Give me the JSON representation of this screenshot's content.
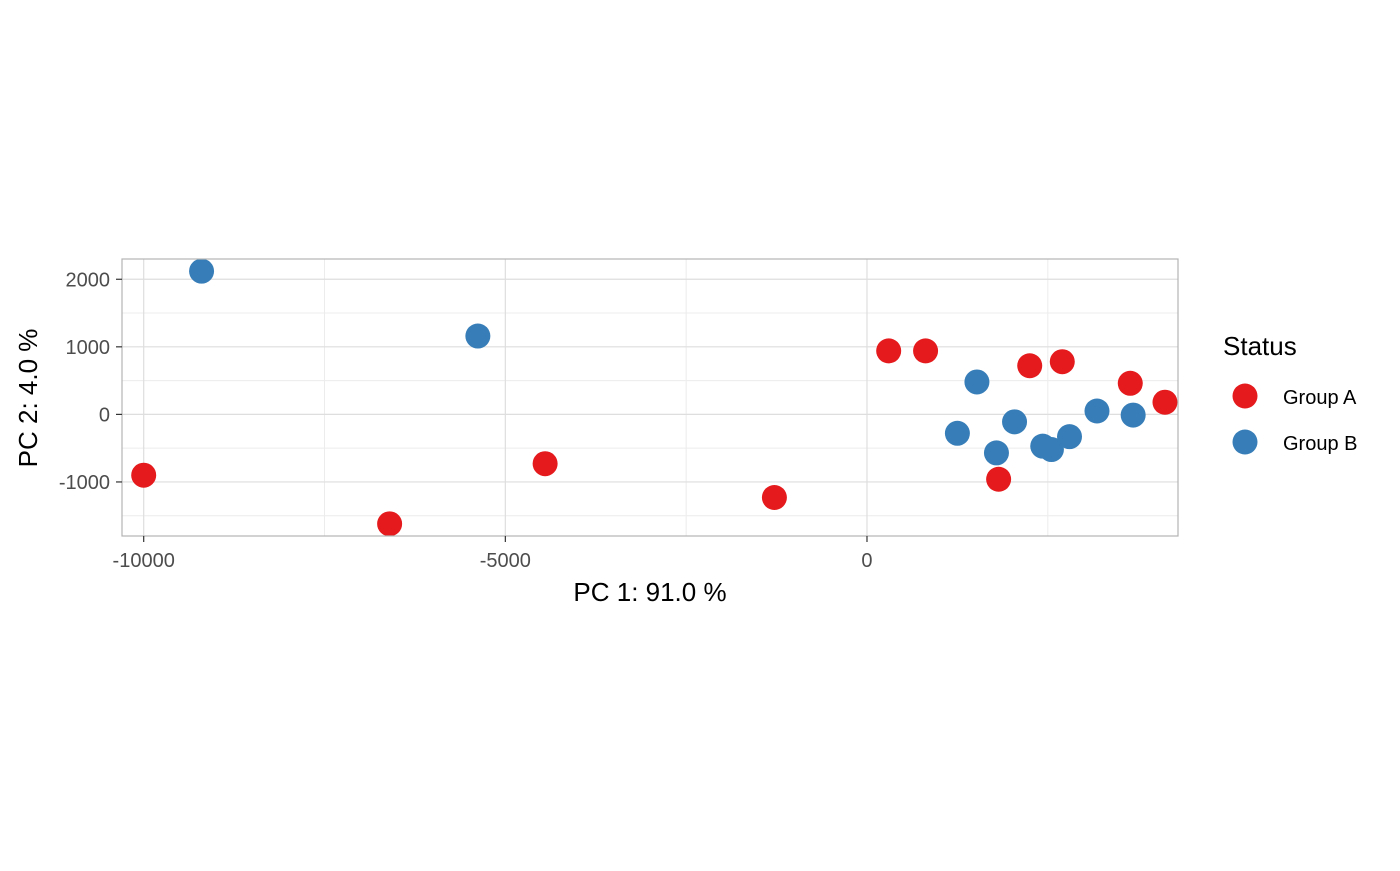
{
  "chart_data": {
    "type": "scatter",
    "title": "",
    "xlabel": "PC 1: 91.0 %",
    "ylabel": "PC 2: 4.0 %",
    "xlim": [
      -10300,
      4300
    ],
    "ylim": [
      -1800,
      2300
    ],
    "x_ticks": [
      -10000,
      -5000,
      0
    ],
    "x_tick_labels": [
      "-10000",
      "-5000",
      "0"
    ],
    "y_ticks": [
      -1000,
      0,
      1000,
      2000
    ],
    "y_tick_labels": [
      "-1000",
      "0",
      "1000",
      "2000"
    ],
    "grid": true,
    "legend": {
      "title": "Status",
      "placement": "right"
    },
    "series": [
      {
        "name": "Group A",
        "color": "#E41A1C",
        "points": [
          {
            "x": -10000,
            "y": -900
          },
          {
            "x": -6600,
            "y": -1620
          },
          {
            "x": -4450,
            "y": -730
          },
          {
            "x": -1280,
            "y": -1230
          },
          {
            "x": 300,
            "y": 940
          },
          {
            "x": 810,
            "y": 940
          },
          {
            "x": 1820,
            "y": -960
          },
          {
            "x": 2250,
            "y": 720
          },
          {
            "x": 2700,
            "y": 780
          },
          {
            "x": 3640,
            "y": 460
          },
          {
            "x": 4120,
            "y": 180
          }
        ]
      },
      {
        "name": "Group B",
        "color": "#377EB8",
        "points": [
          {
            "x": -9200,
            "y": 2120
          },
          {
            "x": -5380,
            "y": 1160
          },
          {
            "x": 1250,
            "y": -280
          },
          {
            "x": 1520,
            "y": 480
          },
          {
            "x": 1790,
            "y": -570
          },
          {
            "x": 2040,
            "y": -110
          },
          {
            "x": 2430,
            "y": -470
          },
          {
            "x": 2550,
            "y": -520
          },
          {
            "x": 2800,
            "y": -330
          },
          {
            "x": 3180,
            "y": 50
          },
          {
            "x": 3680,
            "y": -10
          }
        ]
      }
    ]
  }
}
